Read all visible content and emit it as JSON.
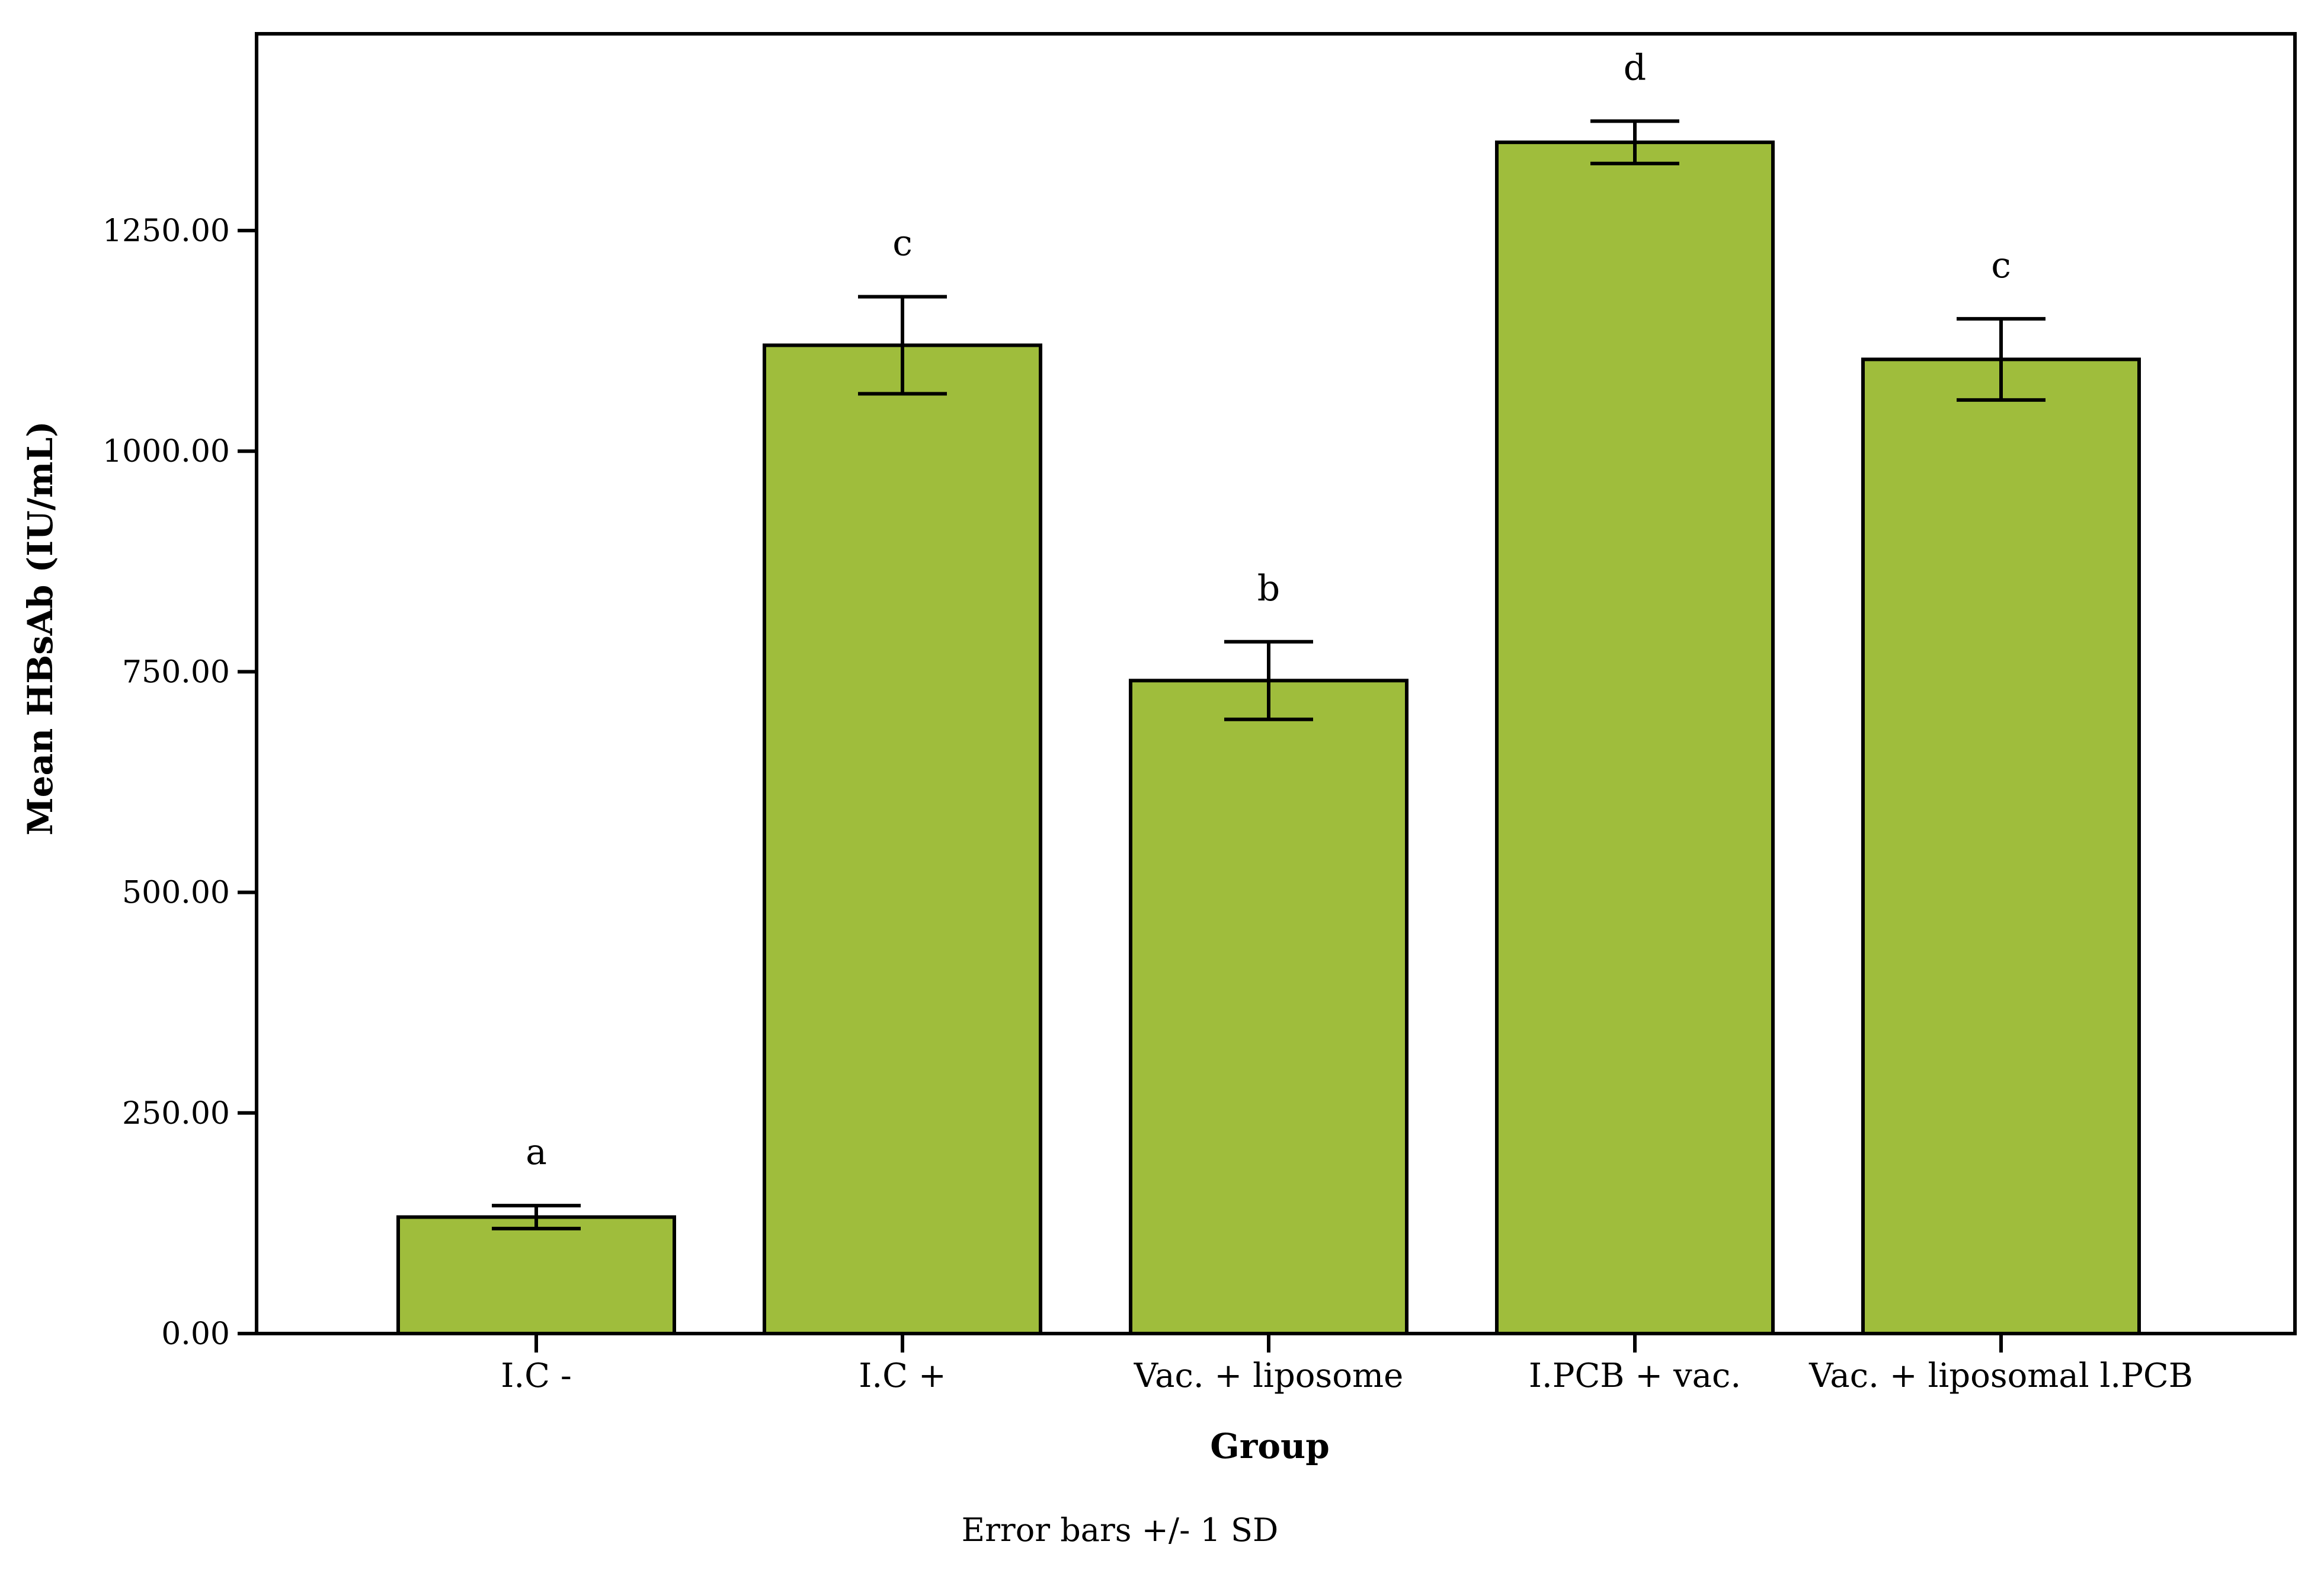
{
  "chart_data": {
    "type": "bar",
    "categories": [
      "I.C -",
      "I.C +",
      "Vac. + liposome",
      "I.PCB + vac.",
      "Vac. + liposomal l.PCB"
    ],
    "values": [
      132,
      1120,
      740,
      1350,
      1104
    ],
    "error_sd": [
      13,
      55,
      44,
      24,
      46
    ],
    "significance_letters": [
      "a",
      "c",
      "b",
      "d",
      "c"
    ],
    "xlabel": "Group",
    "ylabel": "Mean HBsAb (IU/mL)",
    "ylim": [
      0,
      1475
    ],
    "yticks": [
      0,
      250,
      500,
      750,
      1000,
      1250
    ],
    "ytick_labels": [
      "0.00",
      "250.00",
      "500.00",
      "750.00",
      "1000.00",
      "1250.00"
    ],
    "footnote": "Error bars +/- 1 SD",
    "grid": false,
    "bar_color": "#9fbd3c"
  }
}
